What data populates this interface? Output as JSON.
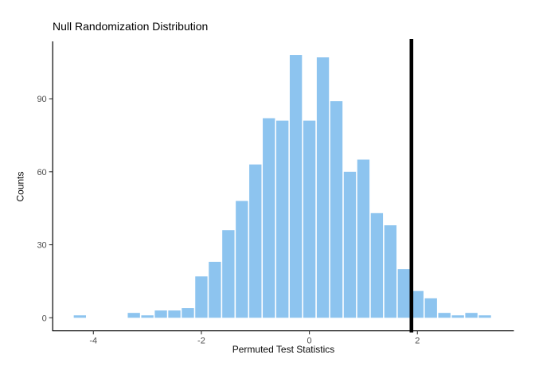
{
  "chart": {
    "title": "Null Randomization Distribution",
    "xlabel": "Permuted Test Statistics",
    "ylabel": "Counts"
  },
  "chart_data": {
    "type": "bar",
    "subtype": "histogram",
    "title": "Null Randomization Distribution",
    "xlabel": "Permuted Test Statistics",
    "ylabel": "Counts",
    "grid": false,
    "legend_position": "none",
    "bin_width": 0.25,
    "bin_centers": [
      -4.25,
      -4.0,
      -3.75,
      -3.5,
      -3.25,
      -3.0,
      -2.75,
      -2.5,
      -2.25,
      -2.0,
      -1.75,
      -1.5,
      -1.25,
      -1.0,
      -0.75,
      -0.5,
      -0.25,
      0.0,
      0.25,
      0.5,
      0.75,
      1.0,
      1.25,
      1.5,
      1.75,
      2.0,
      2.25,
      2.5,
      2.75,
      3.0,
      3.25
    ],
    "counts": [
      1,
      0,
      0,
      0,
      2,
      1,
      3,
      3,
      4,
      17,
      23,
      36,
      48,
      63,
      82,
      81,
      108,
      81,
      107,
      89,
      60,
      65,
      43,
      38,
      20,
      11,
      8,
      2,
      1,
      2,
      1
    ],
    "total_samples": 1000,
    "x_ticks": [
      -4,
      -2,
      0,
      2
    ],
    "y_ticks": [
      0,
      30,
      60,
      90
    ],
    "xlim": [
      -4.75,
      3.8
    ],
    "ylim": [
      0,
      113
    ],
    "observed_statistic_line_x": 1.89,
    "bar_color": "#8DC4EF",
    "vline_color": "#000000",
    "axis_line_color": "#000000",
    "tick_label_color": "#4d4d4d"
  }
}
